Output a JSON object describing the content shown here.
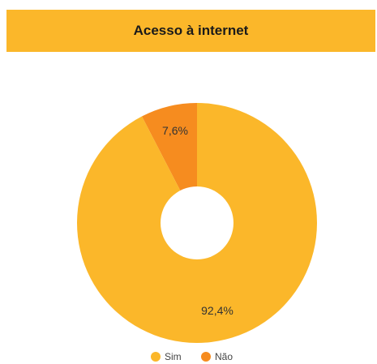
{
  "chart_data": {
    "type": "pie",
    "title": "Acesso à internet",
    "donut": true,
    "legend_position": "bottom",
    "slices": [
      {
        "label": "Sim",
        "value": 92.4,
        "display": "92,4%",
        "color": "#FBB72A"
      },
      {
        "label": "Não",
        "value": 7.6,
        "display": "7,6%",
        "color": "#F68C1F"
      }
    ]
  }
}
